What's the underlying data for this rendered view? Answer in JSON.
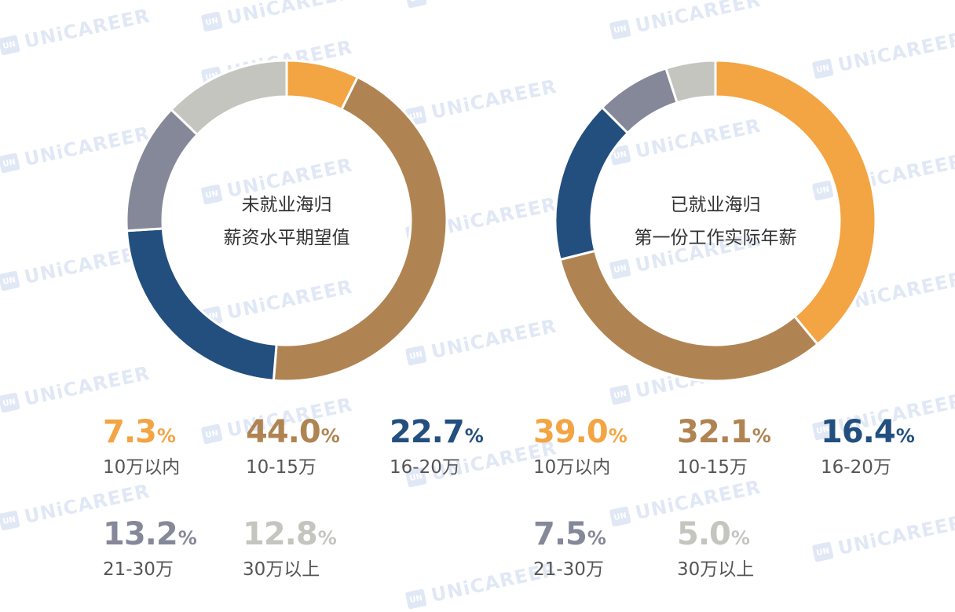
{
  "watermark": {
    "text": "UNiCAREER",
    "icon": "UN"
  },
  "chart_data": [
    {
      "type": "pie",
      "title": "未就业海归\n薪资水平期望值",
      "title_lines": [
        "未就业海归",
        "薪资水平期望值"
      ],
      "categories": [
        "10万以内",
        "10-15万",
        "16-20万",
        "21-30万",
        "30万以上"
      ],
      "values": [
        7.3,
        44.0,
        22.7,
        13.2,
        12.8
      ],
      "display": [
        "7.3",
        "44.0",
        "22.7",
        "13.2",
        "12.8"
      ],
      "unit": "%",
      "colors": [
        "#f3a443",
        "#b08452",
        "#234f7f",
        "#858899",
        "#c5c5c0"
      ],
      "legend": "bottom",
      "donut": true
    },
    {
      "type": "pie",
      "title": "已就业海归\n第一份工作实际年薪",
      "title_lines": [
        "已就业海归",
        "第一份工作实际年薪"
      ],
      "categories": [
        "10万以内",
        "10-15万",
        "16-20万",
        "21-30万",
        "30万以上"
      ],
      "values": [
        39.0,
        32.1,
        16.4,
        7.5,
        5.0
      ],
      "display": [
        "39.0",
        "32.1",
        "16.4",
        "7.5",
        "5.0"
      ],
      "unit": "%",
      "colors": [
        "#f3a443",
        "#b08452",
        "#234f7f",
        "#858899",
        "#c5c5c0"
      ],
      "legend": "bottom",
      "donut": true
    }
  ]
}
